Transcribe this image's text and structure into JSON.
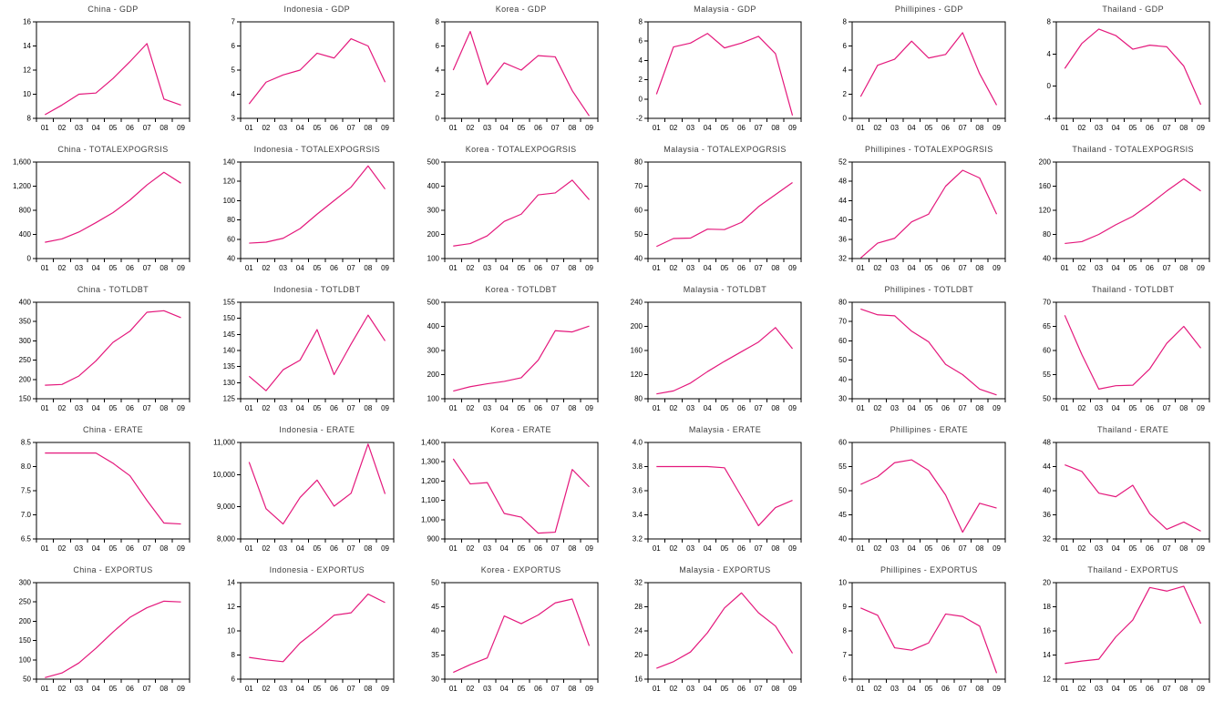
{
  "page": {
    "background": "#ffffff",
    "description": "Grid of 30 small time-series line charts (EViews-style multiple graphs), 6 countries x 5 variables, annual data 01-09"
  },
  "grid": {
    "countries": [
      "China",
      "Indonesia",
      "Korea",
      "Malaysia",
      "Phillipines",
      "Thailand"
    ],
    "variables": [
      "GDP",
      "TOTALEXPOGRSIS",
      "TOTLDBT",
      "ERATE",
      "EXPORTUS"
    ]
  },
  "style": {
    "line_color": "#E4187C",
    "title_color": "#3c3c3c",
    "axis_color": "#000000",
    "plot_background": "#ffffff"
  },
  "chart_data": [
    {
      "type": "line",
      "title": "China - GDP",
      "country": "China",
      "variable": "GDP",
      "x": [
        "01",
        "02",
        "03",
        "04",
        "05",
        "06",
        "07",
        "08",
        "09"
      ],
      "ylim": [
        8,
        16
      ],
      "y_ticks": [
        "8",
        "10",
        "12",
        "14",
        "16"
      ],
      "values": [
        8.3,
        9.1,
        10.0,
        10.1,
        11.3,
        12.7,
        14.2,
        9.6,
        9.1
      ]
    },
    {
      "type": "line",
      "title": "Indonesia - GDP",
      "country": "Indonesia",
      "variable": "GDP",
      "x": [
        "01",
        "02",
        "03",
        "04",
        "05",
        "06",
        "07",
        "08",
        "09"
      ],
      "ylim": [
        3,
        7
      ],
      "y_ticks": [
        "3",
        "4",
        "5",
        "6",
        "7"
      ],
      "values": [
        3.6,
        4.5,
        4.8,
        5.0,
        5.7,
        5.5,
        6.3,
        6.0,
        4.5
      ]
    },
    {
      "type": "line",
      "title": "Korea - GDP",
      "country": "Korea",
      "variable": "GDP",
      "x": [
        "01",
        "02",
        "03",
        "04",
        "05",
        "06",
        "07",
        "08",
        "09"
      ],
      "ylim": [
        0,
        8
      ],
      "y_ticks": [
        "0",
        "2",
        "4",
        "6",
        "8"
      ],
      "values": [
        4.0,
        7.2,
        2.8,
        4.6,
        4.0,
        5.2,
        5.1,
        2.3,
        0.2
      ]
    },
    {
      "type": "line",
      "title": "Malaysia - GDP",
      "country": "Malaysia",
      "variable": "GDP",
      "x": [
        "01",
        "02",
        "03",
        "04",
        "05",
        "06",
        "07",
        "08",
        "09"
      ],
      "ylim": [
        -2,
        8
      ],
      "y_ticks": [
        "-2",
        "0",
        "2",
        "4",
        "6",
        "8"
      ],
      "values": [
        0.5,
        5.4,
        5.8,
        6.8,
        5.3,
        5.8,
        6.5,
        4.7,
        -1.7
      ]
    },
    {
      "type": "line",
      "title": "Phillipines - GDP",
      "country": "Phillipines",
      "variable": "GDP",
      "x": [
        "01",
        "02",
        "03",
        "04",
        "05",
        "06",
        "07",
        "08",
        "09"
      ],
      "ylim": [
        0,
        8
      ],
      "y_ticks": [
        "0",
        "2",
        "4",
        "6",
        "8"
      ],
      "values": [
        1.8,
        4.4,
        4.9,
        6.4,
        5.0,
        5.3,
        7.1,
        3.7,
        1.1
      ]
    },
    {
      "type": "line",
      "title": "Thailand - GDP",
      "country": "Thailand",
      "variable": "GDP",
      "x": [
        "01",
        "02",
        "03",
        "04",
        "05",
        "06",
        "07",
        "08",
        "09"
      ],
      "ylim": [
        -4,
        8
      ],
      "y_ticks": [
        "-4",
        "0",
        "4",
        "8"
      ],
      "values": [
        2.2,
        5.3,
        7.1,
        6.3,
        4.6,
        5.1,
        4.9,
        2.5,
        -2.3
      ]
    },
    {
      "type": "line",
      "title": "China - TOTALEXPOGRSIS",
      "country": "China",
      "variable": "TOTALEXPOGRSIS",
      "x": [
        "01",
        "02",
        "03",
        "04",
        "05",
        "06",
        "07",
        "08",
        "09"
      ],
      "ylim": [
        0,
        1600
      ],
      "y_ticks": [
        "0",
        "400",
        "800",
        "1,200",
        "1,600"
      ],
      "values": [
        270,
        325,
        440,
        595,
        760,
        970,
        1220,
        1430,
        1250
      ]
    },
    {
      "type": "line",
      "title": "Indonesia - TOTALEXPOGRSIS",
      "country": "Indonesia",
      "variable": "TOTALEXPOGRSIS",
      "x": [
        "01",
        "02",
        "03",
        "04",
        "05",
        "06",
        "07",
        "08",
        "09"
      ],
      "ylim": [
        40,
        140
      ],
      "y_ticks": [
        "40",
        "60",
        "80",
        "100",
        "120",
        "140"
      ],
      "values": [
        56,
        57,
        61,
        71,
        86,
        100,
        114,
        136,
        112
      ]
    },
    {
      "type": "line",
      "title": "Korea - TOTALEXPOGRSIS",
      "country": "Korea",
      "variable": "TOTALEXPOGRSIS",
      "x": [
        "01",
        "02",
        "03",
        "04",
        "05",
        "06",
        "07",
        "08",
        "09"
      ],
      "ylim": [
        100,
        500
      ],
      "y_ticks": [
        "100",
        "200",
        "300",
        "400",
        "500"
      ],
      "values": [
        152,
        162,
        194,
        254,
        284,
        364,
        372,
        425,
        344
      ]
    },
    {
      "type": "line",
      "title": "Malaysia - TOTALEXPOGRSIS",
      "country": "Malaysia",
      "variable": "TOTALEXPOGRSIS",
      "x": [
        "01",
        "02",
        "03",
        "04",
        "05",
        "06",
        "07",
        "08",
        "09"
      ],
      "ylim": [
        40,
        80
      ],
      "y_ticks": [
        "40",
        "50",
        "60",
        "70",
        "80"
      ],
      "values": [
        45,
        48.3,
        48.5,
        52.2,
        52.0,
        55.0,
        61.5,
        66.5,
        71.5
      ]
    },
    {
      "type": "line",
      "title": "Phillipines - TOTALEXPOGRSIS",
      "country": "Phillipines",
      "variable": "TOTALEXPOGRSIS",
      "x": [
        "01",
        "02",
        "03",
        "04",
        "05",
        "06",
        "07",
        "08",
        "09"
      ],
      "ylim": [
        32,
        52
      ],
      "y_ticks": [
        "32",
        "36",
        "40",
        "44",
        "48",
        "52"
      ],
      "values": [
        32.1,
        35.2,
        36.2,
        39.6,
        41.2,
        47.0,
        50.3,
        48.7,
        41.2
      ]
    },
    {
      "type": "line",
      "title": "Thailand - TOTALEXPOGRSIS",
      "country": "Thailand",
      "variable": "TOTALEXPOGRSIS",
      "x": [
        "01",
        "02",
        "03",
        "04",
        "05",
        "06",
        "07",
        "08",
        "09"
      ],
      "ylim": [
        40,
        200
      ],
      "y_ticks": [
        "40",
        "80",
        "120",
        "160",
        "200"
      ],
      "values": [
        65,
        68,
        80,
        96,
        110,
        130,
        152,
        172,
        152
      ]
    },
    {
      "type": "line",
      "title": "China - TOTLDBT",
      "country": "China",
      "variable": "TOTLDBT",
      "x": [
        "01",
        "02",
        "03",
        "04",
        "05",
        "06",
        "07",
        "08",
        "09"
      ],
      "ylim": [
        150,
        400
      ],
      "y_ticks": [
        "150",
        "200",
        "250",
        "300",
        "350",
        "400"
      ],
      "values": [
        185,
        187,
        209,
        248,
        296,
        325,
        374,
        378,
        360
      ]
    },
    {
      "type": "line",
      "title": "Indonesia - TOTLDBT",
      "country": "Indonesia",
      "variable": "TOTLDBT",
      "x": [
        "01",
        "02",
        "03",
        "04",
        "05",
        "06",
        "07",
        "08",
        "09"
      ],
      "ylim": [
        125,
        155
      ],
      "y_ticks": [
        "125",
        "130",
        "135",
        "140",
        "145",
        "150",
        "155"
      ],
      "values": [
        132,
        127.5,
        134,
        137,
        146.5,
        132.5,
        142,
        151,
        143
      ]
    },
    {
      "type": "line",
      "title": "Korea - TOTLDBT",
      "country": "Korea",
      "variable": "TOTLDBT",
      "x": [
        "01",
        "02",
        "03",
        "04",
        "05",
        "06",
        "07",
        "08",
        "09"
      ],
      "ylim": [
        100,
        500
      ],
      "y_ticks": [
        "100",
        "200",
        "300",
        "400",
        "500"
      ],
      "values": [
        132,
        150,
        162,
        172,
        187,
        260,
        382,
        377,
        401
      ]
    },
    {
      "type": "line",
      "title": "Malaysia - TOTLDBT",
      "country": "Malaysia",
      "variable": "TOTLDBT",
      "x": [
        "01",
        "02",
        "03",
        "04",
        "05",
        "06",
        "07",
        "08",
        "09"
      ],
      "ylim": [
        80,
        240
      ],
      "y_ticks": [
        "80",
        "120",
        "160",
        "200",
        "240"
      ],
      "values": [
        88,
        93,
        106,
        125,
        142,
        158,
        174,
        198,
        163
      ]
    },
    {
      "type": "line",
      "title": "Phillipines - TOTLDBT",
      "country": "Phillipines",
      "variable": "TOTLDBT",
      "x": [
        "01",
        "02",
        "03",
        "04",
        "05",
        "06",
        "07",
        "08",
        "09"
      ],
      "ylim": [
        30,
        80
      ],
      "y_ticks": [
        "30",
        "40",
        "50",
        "60",
        "70",
        "80"
      ],
      "values": [
        76.5,
        73.5,
        73.0,
        65.0,
        59.5,
        47.8,
        42.5,
        35.0,
        32.0
      ]
    },
    {
      "type": "line",
      "title": "Thailand - TOTLDBT",
      "country": "Thailand",
      "variable": "TOTLDBT",
      "x": [
        "01",
        "02",
        "03",
        "04",
        "05",
        "06",
        "07",
        "08",
        "09"
      ],
      "ylim": [
        50,
        70
      ],
      "y_ticks": [
        "50",
        "55",
        "60",
        "65",
        "70"
      ],
      "values": [
        67.3,
        59.2,
        52.0,
        52.7,
        52.8,
        56.2,
        61.5,
        65.0,
        60.5
      ]
    },
    {
      "type": "line",
      "title": "China - ERATE",
      "country": "China",
      "variable": "ERATE",
      "x": [
        "01",
        "02",
        "03",
        "04",
        "05",
        "06",
        "07",
        "08",
        "09"
      ],
      "ylim": [
        6.5,
        8.5
      ],
      "y_ticks": [
        "6.5",
        "7.0",
        "7.5",
        "8.0",
        "8.5"
      ],
      "values": [
        8.28,
        8.28,
        8.28,
        8.28,
        8.07,
        7.81,
        7.3,
        6.83,
        6.81
      ]
    },
    {
      "type": "line",
      "title": "Indonesia - ERATE",
      "country": "Indonesia",
      "variable": "ERATE",
      "x": [
        "01",
        "02",
        "03",
        "04",
        "05",
        "06",
        "07",
        "08",
        "09"
      ],
      "ylim": [
        8000,
        11000
      ],
      "y_ticks": [
        "8,000",
        "9,000",
        "10,000",
        "11,000"
      ],
      "values": [
        10390,
        8940,
        8465,
        9290,
        9830,
        9020,
        9420,
        10950,
        9400
      ]
    },
    {
      "type": "line",
      "title": "Korea - ERATE",
      "country": "Korea",
      "variable": "ERATE",
      "x": [
        "01",
        "02",
        "03",
        "04",
        "05",
        "06",
        "07",
        "08",
        "09"
      ],
      "ylim": [
        900,
        1400
      ],
      "y_ticks": [
        "900",
        "1,000",
        "1,100",
        "1,200",
        "1,300",
        "1,400"
      ],
      "values": [
        1315,
        1185,
        1192,
        1032,
        1013,
        930,
        935,
        1260,
        1170
      ]
    },
    {
      "type": "line",
      "title": "Malaysia - ERATE",
      "country": "Malaysia",
      "variable": "ERATE",
      "x": [
        "01",
        "02",
        "03",
        "04",
        "05",
        "06",
        "07",
        "08",
        "09"
      ],
      "ylim": [
        3.2,
        4.0
      ],
      "y_ticks": [
        "3.2",
        "3.4",
        "3.6",
        "3.8",
        "4.0"
      ],
      "values": [
        3.8,
        3.8,
        3.8,
        3.8,
        3.79,
        3.55,
        3.31,
        3.46,
        3.52
      ]
    },
    {
      "type": "line",
      "title": "Phillipines - ERATE",
      "country": "Phillipines",
      "variable": "ERATE",
      "x": [
        "01",
        "02",
        "03",
        "04",
        "05",
        "06",
        "07",
        "08",
        "09"
      ],
      "ylim": [
        40,
        60
      ],
      "y_ticks": [
        "40",
        "45",
        "50",
        "55",
        "60"
      ],
      "values": [
        51.3,
        52.9,
        55.8,
        56.4,
        54.2,
        49.1,
        41.4,
        47.4,
        46.4
      ]
    },
    {
      "type": "line",
      "title": "Thailand - ERATE",
      "country": "Thailand",
      "variable": "ERATE",
      "x": [
        "01",
        "02",
        "03",
        "04",
        "05",
        "06",
        "07",
        "08",
        "09"
      ],
      "ylim": [
        32,
        48
      ],
      "y_ticks": [
        "32",
        "36",
        "40",
        "44",
        "48"
      ],
      "values": [
        44.3,
        43.2,
        39.6,
        39.0,
        40.9,
        36.2,
        33.6,
        34.8,
        33.3
      ]
    },
    {
      "type": "line",
      "title": "China - EXPORTUS",
      "country": "China",
      "variable": "EXPORTUS",
      "x": [
        "01",
        "02",
        "03",
        "04",
        "05",
        "06",
        "07",
        "08",
        "09"
      ],
      "ylim": [
        50,
        300
      ],
      "y_ticks": [
        "50",
        "100",
        "150",
        "200",
        "250",
        "300"
      ],
      "values": [
        54,
        66,
        92,
        130,
        172,
        210,
        235,
        252,
        250
      ]
    },
    {
      "type": "line",
      "title": "Indonesia - EXPORTUS",
      "country": "Indonesia",
      "variable": "EXPORTUS",
      "x": [
        "01",
        "02",
        "03",
        "04",
        "05",
        "06",
        "07",
        "08",
        "09"
      ],
      "ylim": [
        6,
        14
      ],
      "y_ticks": [
        "6",
        "8",
        "10",
        "12",
        "14"
      ],
      "values": [
        7.8,
        7.6,
        7.45,
        9.0,
        10.1,
        11.3,
        11.5,
        13.05,
        12.35
      ]
    },
    {
      "type": "line",
      "title": "Korea - EXPORTUS",
      "country": "Korea",
      "variable": "EXPORTUS",
      "x": [
        "01",
        "02",
        "03",
        "04",
        "05",
        "06",
        "07",
        "08",
        "09"
      ],
      "ylim": [
        30,
        50
      ],
      "y_ticks": [
        "30",
        "35",
        "40",
        "45",
        "50"
      ],
      "values": [
        31.4,
        33.0,
        34.4,
        43.1,
        41.5,
        43.3,
        45.8,
        46.6,
        36.9
      ]
    },
    {
      "type": "line",
      "title": "Malaysia - EXPORTUS",
      "country": "Malaysia",
      "variable": "EXPORTUS",
      "x": [
        "01",
        "02",
        "03",
        "04",
        "05",
        "06",
        "07",
        "08",
        "09"
      ],
      "ylim": [
        16,
        32
      ],
      "y_ticks": [
        "16",
        "20",
        "24",
        "28",
        "32"
      ],
      "values": [
        17.8,
        18.9,
        20.5,
        23.7,
        27.8,
        30.3,
        27.0,
        24.8,
        20.3
      ]
    },
    {
      "type": "line",
      "title": "Phillipines - EXPORTUS",
      "country": "Phillipines",
      "variable": "EXPORTUS",
      "x": [
        "01",
        "02",
        "03",
        "04",
        "05",
        "06",
        "07",
        "08",
        "09"
      ],
      "ylim": [
        6,
        10
      ],
      "y_ticks": [
        "6",
        "7",
        "8",
        "9",
        "10"
      ],
      "values": [
        8.95,
        8.65,
        7.3,
        7.2,
        7.5,
        8.7,
        8.6,
        8.2,
        6.25
      ]
    },
    {
      "type": "line",
      "title": "Thailand - EXPORTUS",
      "country": "Thailand",
      "variable": "EXPORTUS",
      "x": [
        "01",
        "02",
        "03",
        "04",
        "05",
        "06",
        "07",
        "08",
        "09"
      ],
      "ylim": [
        12,
        20
      ],
      "y_ticks": [
        "12",
        "14",
        "16",
        "18",
        "20"
      ],
      "values": [
        13.3,
        13.5,
        13.65,
        15.5,
        16.9,
        19.6,
        19.3,
        19.7,
        16.6
      ]
    }
  ]
}
